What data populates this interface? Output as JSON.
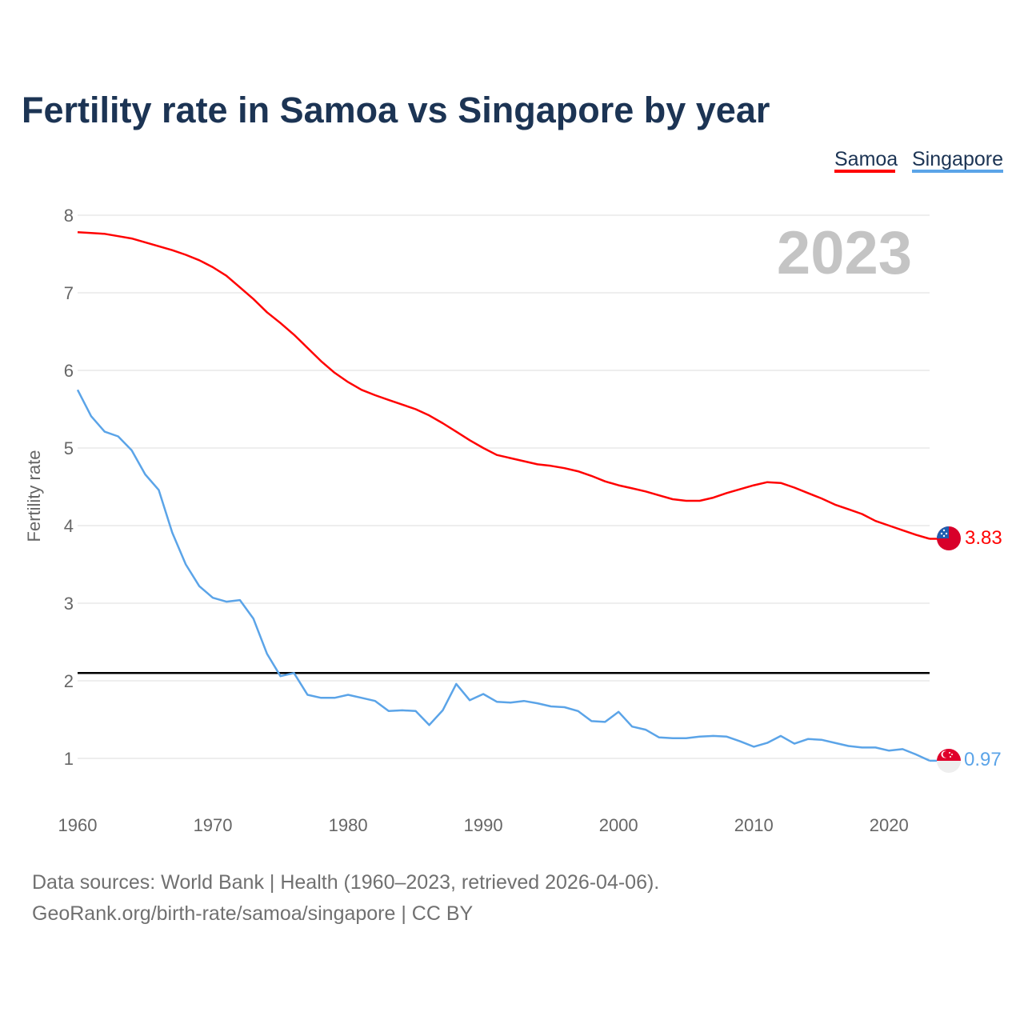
{
  "chart_data": {
    "type": "line",
    "title": "Fertility rate in Samoa vs Singapore by year",
    "xlabel": "",
    "ylabel": "Fertility rate",
    "xlim": [
      1960,
      2023
    ],
    "ylim": [
      0.3,
      8
    ],
    "x_ticks": [
      1960,
      1970,
      1980,
      1990,
      2000,
      2010,
      2020
    ],
    "y_ticks": [
      1,
      2,
      3,
      4,
      5,
      6,
      7,
      8
    ],
    "grid": true,
    "legend_position": "top-right",
    "current_year_label": "2023",
    "reference_line": {
      "value": 2.1,
      "color": "#000000"
    },
    "x": [
      1960,
      1961,
      1962,
      1963,
      1964,
      1965,
      1966,
      1967,
      1968,
      1969,
      1970,
      1971,
      1972,
      1973,
      1974,
      1975,
      1976,
      1977,
      1978,
      1979,
      1980,
      1981,
      1982,
      1983,
      1984,
      1985,
      1986,
      1987,
      1988,
      1989,
      1990,
      1991,
      1992,
      1993,
      1994,
      1995,
      1996,
      1997,
      1998,
      1999,
      2000,
      2001,
      2002,
      2003,
      2004,
      2005,
      2006,
      2007,
      2008,
      2009,
      2010,
      2011,
      2012,
      2013,
      2014,
      2015,
      2016,
      2017,
      2018,
      2019,
      2020,
      2021,
      2022,
      2023
    ],
    "series": [
      {
        "name": "Samoa",
        "color": "#ff0000",
        "end_label": "3.83",
        "values": [
          7.78,
          7.77,
          7.76,
          7.73,
          7.7,
          7.65,
          7.6,
          7.55,
          7.49,
          7.42,
          7.33,
          7.22,
          7.07,
          6.92,
          6.75,
          6.61,
          6.46,
          6.29,
          6.12,
          5.97,
          5.85,
          5.75,
          5.68,
          5.62,
          5.56,
          5.5,
          5.42,
          5.32,
          5.21,
          5.1,
          5.0,
          4.91,
          4.87,
          4.83,
          4.79,
          4.77,
          4.74,
          4.7,
          4.64,
          4.57,
          4.52,
          4.48,
          4.44,
          4.39,
          4.34,
          4.32,
          4.32,
          4.36,
          4.42,
          4.47,
          4.52,
          4.56,
          4.55,
          4.49,
          4.42,
          4.35,
          4.27,
          4.21,
          4.15,
          4.06,
          4.0,
          3.94,
          3.88,
          3.83
        ]
      },
      {
        "name": "Singapore",
        "color": "#5ba4e8",
        "end_label": "0.97",
        "values": [
          5.75,
          5.41,
          5.21,
          5.15,
          4.97,
          4.66,
          4.46,
          3.91,
          3.5,
          3.22,
          3.07,
          3.02,
          3.04,
          2.8,
          2.35,
          2.06,
          2.1,
          1.82,
          1.78,
          1.78,
          1.82,
          1.78,
          1.74,
          1.61,
          1.62,
          1.61,
          1.43,
          1.62,
          1.96,
          1.75,
          1.83,
          1.73,
          1.72,
          1.74,
          1.71,
          1.67,
          1.66,
          1.61,
          1.48,
          1.47,
          1.6,
          1.41,
          1.37,
          1.27,
          1.26,
          1.26,
          1.28,
          1.29,
          1.28,
          1.22,
          1.15,
          1.2,
          1.29,
          1.19,
          1.25,
          1.24,
          1.2,
          1.16,
          1.14,
          1.14,
          1.1,
          1.12,
          1.05,
          0.97
        ]
      }
    ]
  },
  "footer": {
    "line1": "Data sources: World Bank | Health (1960–2023, retrieved 2026-04-06).",
    "line2": "GeoRank.org/birth-rate/samoa/singapore | CC BY"
  }
}
